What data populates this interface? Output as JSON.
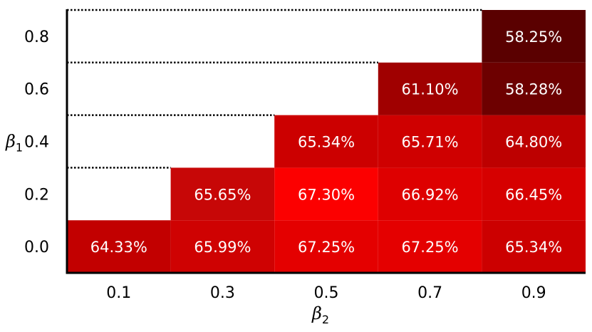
{
  "chart_data": {
    "type": "heatmap",
    "x_categories": [
      "0.1",
      "0.3",
      "0.5",
      "0.7",
      "0.9"
    ],
    "y_categories": [
      "0.0",
      "0.2",
      "0.4",
      "0.6",
      "0.8"
    ],
    "xlabel_symbol": "β",
    "xlabel_subscript": "2",
    "ylabel_symbol": "β",
    "ylabel_subscript": "1",
    "cells": [
      {
        "x": "0.1",
        "y": "0.0",
        "value": 64.33,
        "label": "64.33%"
      },
      {
        "x": "0.3",
        "y": "0.0",
        "value": 65.99,
        "label": "65.99%"
      },
      {
        "x": "0.5",
        "y": "0.0",
        "value": 67.25,
        "label": "67.25%"
      },
      {
        "x": "0.7",
        "y": "0.0",
        "value": 67.25,
        "label": "67.25%"
      },
      {
        "x": "0.9",
        "y": "0.0",
        "value": 65.34,
        "label": "65.34%"
      },
      {
        "x": "0.3",
        "y": "0.2",
        "value": 65.65,
        "label": "65.65%"
      },
      {
        "x": "0.5",
        "y": "0.2",
        "value": 67.3,
        "label": "67.30%"
      },
      {
        "x": "0.7",
        "y": "0.2",
        "value": 66.92,
        "label": "66.92%"
      },
      {
        "x": "0.9",
        "y": "0.2",
        "value": 66.45,
        "label": "66.45%"
      },
      {
        "x": "0.5",
        "y": "0.4",
        "value": 65.34,
        "label": "65.34%"
      },
      {
        "x": "0.7",
        "y": "0.4",
        "value": 65.71,
        "label": "65.71%"
      },
      {
        "x": "0.9",
        "y": "0.4",
        "value": 64.8,
        "label": "64.80%"
      },
      {
        "x": "0.7",
        "y": "0.6",
        "value": 61.1,
        "label": "61.10%"
      },
      {
        "x": "0.9",
        "y": "0.6",
        "value": 58.28,
        "label": "58.28%"
      },
      {
        "x": "0.9",
        "y": "0.8",
        "value": 58.25,
        "label": "58.25%"
      }
    ],
    "colors": {
      "#c20000": "64.33",
      "#c70707": "65.99 / 65.65",
      "#e40000": "67.25",
      "#fc0000": "67.30",
      "#de0000": "66.92",
      "#d60000": "66.45",
      "#cc0000": "65.34 / 65.71",
      "#bd0000": "64.80",
      "#a00000": "61.10",
      "#6d0000": "58.28",
      "#5a0000": "58.25",
      "empty": "#ffffff"
    },
    "empty_cells_boundary": "dotted",
    "grid": false,
    "legend": "none"
  }
}
